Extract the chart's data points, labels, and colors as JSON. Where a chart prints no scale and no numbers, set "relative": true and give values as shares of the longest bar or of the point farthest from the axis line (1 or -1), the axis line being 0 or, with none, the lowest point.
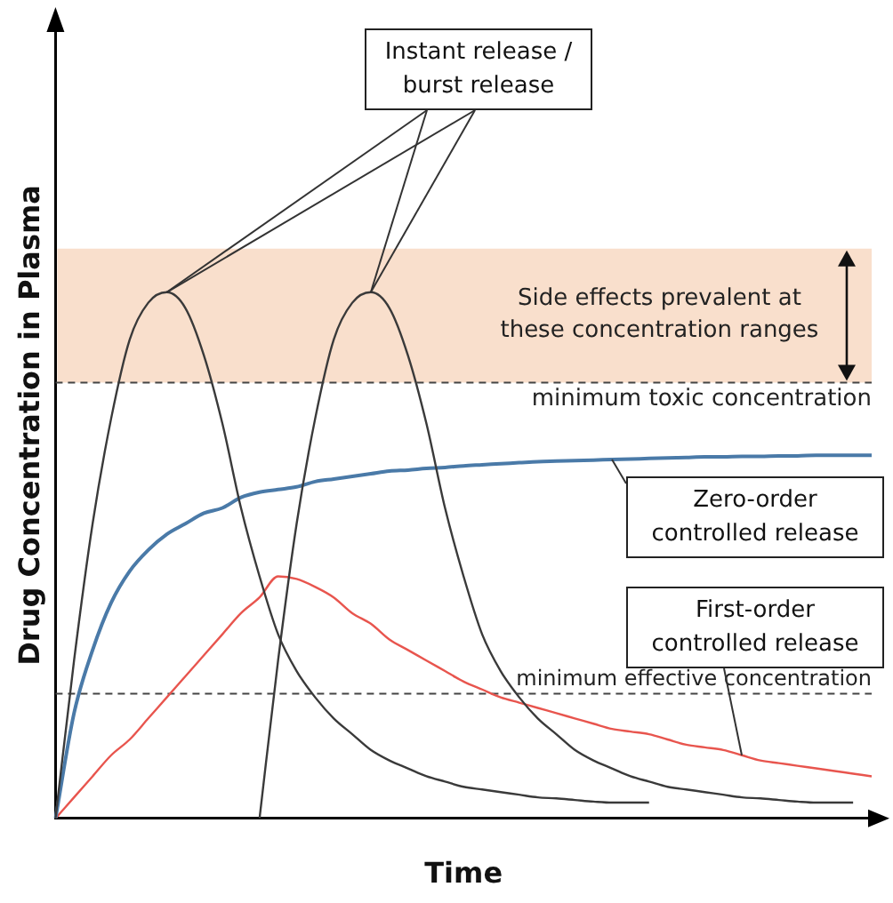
{
  "chart_data": {
    "type": "line",
    "relative": true,
    "xlabel": "Time",
    "ylabel": "Drug Concentration in Plasma",
    "legend": false,
    "grid": false,
    "marker": "none",
    "categories": [
      null,
      null,
      null,
      null,
      null,
      null,
      null,
      null,
      null,
      null,
      null,
      null,
      null,
      null,
      null,
      null,
      null,
      null,
      null,
      null,
      null,
      null,
      null,
      null,
      null,
      null,
      null,
      null,
      null,
      null,
      null,
      null,
      null,
      null,
      null,
      null,
      null,
      null,
      null,
      null,
      null,
      null,
      null,
      null,
      null
    ],
    "series": [
      {
        "color": "#3a3a3a",
        "values": [
          0,
          0.3,
          0.56,
          0.76,
          0.91,
          0.98,
          1.0,
          0.97,
          0.88,
          0.75,
          0.59,
          0.46,
          0.35,
          0.28,
          0.23,
          0.19,
          0.16,
          0.13,
          0.11,
          0.095,
          0.08,
          0.07,
          0.06,
          0.055,
          0.05,
          0.045,
          0.04,
          0.038,
          0.035,
          0.032,
          0.03,
          0.03,
          0.03,
          null,
          null,
          null,
          null,
          null,
          null,
          null,
          null,
          null,
          null,
          null,
          null
        ]
      },
      {
        "color": "#3a3a3a",
        "values": [
          null,
          null,
          null,
          null,
          null,
          null,
          null,
          null,
          null,
          null,
          null,
          0,
          0.3,
          0.56,
          0.76,
          0.91,
          0.98,
          1.0,
          0.97,
          0.88,
          0.75,
          0.59,
          0.46,
          0.35,
          0.28,
          0.23,
          0.19,
          0.16,
          0.13,
          0.11,
          0.095,
          0.08,
          0.07,
          0.06,
          0.055,
          0.05,
          0.045,
          0.04,
          0.038,
          0.035,
          0.032,
          0.03,
          0.03,
          0.03,
          null
        ]
      },
      {
        "color": "#4a7aa8",
        "values": [
          0,
          0.2,
          0.32,
          0.41,
          0.47,
          0.51,
          0.54,
          0.56,
          0.58,
          0.59,
          0.61,
          0.62,
          0.625,
          0.63,
          0.64,
          0.645,
          0.65,
          0.655,
          0.66,
          0.662,
          0.665,
          0.667,
          0.67,
          0.672,
          0.674,
          0.676,
          0.678,
          0.679,
          0.68,
          0.681,
          0.682,
          0.683,
          0.684,
          0.685,
          0.686,
          0.687,
          0.687,
          0.688,
          0.688,
          0.689,
          0.689,
          0.69,
          0.69,
          0.69,
          0.69
        ]
      },
      {
        "color": "#e8554e",
        "values": [
          0,
          0.04,
          0.08,
          0.12,
          0.15,
          0.19,
          0.23,
          0.27,
          0.31,
          0.35,
          0.39,
          0.42,
          0.46,
          0.455,
          0.44,
          0.42,
          0.39,
          0.37,
          0.34,
          0.32,
          0.3,
          0.28,
          0.26,
          0.245,
          0.23,
          0.22,
          0.21,
          0.2,
          0.19,
          0.18,
          0.17,
          0.165,
          0.16,
          0.15,
          0.14,
          0.135,
          0.13,
          0.12,
          0.11,
          0.105,
          0.1,
          0.095,
          0.09,
          0.085,
          0.08
        ]
      }
    ],
    "bands": [
      {
        "axis": "y",
        "from": 0.828,
        "to": 1.083,
        "label": "Side effects prevalent at these concentration ranges",
        "color": "#f9dfcc"
      }
    ],
    "ref_lines": [
      {
        "axis": "y",
        "value": 0.828,
        "label": "minimum toxic concentration",
        "line_style": "dashed",
        "color": "#444444"
      },
      {
        "axis": "y",
        "value": 0.237,
        "label": "minimum effective concentration",
        "line_style": "dashed",
        "color": "#444444"
      }
    ],
    "annotations": [
      "Instant release / burst release",
      "Zero-order controlled release",
      "First-order controlled release"
    ]
  }
}
